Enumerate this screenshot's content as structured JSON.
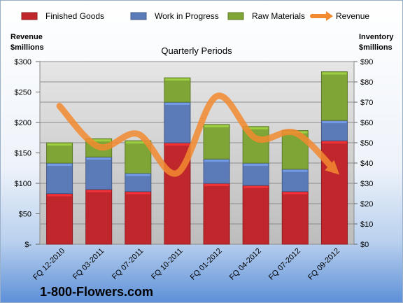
{
  "chart_data": {
    "type": "bar",
    "subtype": "stacked-bar-with-line",
    "title": "Quarterly Periods",
    "left_axis_title_line1": "Revenue",
    "left_axis_title_line2": "$millions",
    "right_axis_title_line1": "Inventory",
    "right_axis_title_line2": "$millions",
    "categories": [
      "FQ 12-2010",
      "FQ 03-2011",
      "FQ 07-2011",
      "FQ 10-2011",
      "FQ 01-2012",
      "FQ 04-2012",
      "FQ 07-2012",
      "FQ 09-2012"
    ],
    "series": [
      {
        "name": "Finished Goods",
        "axis": "right",
        "color": "#c0272d",
        "values": [
          25,
          27,
          26,
          50,
          30,
          29,
          26,
          51
        ]
      },
      {
        "name": "Work in Progress",
        "axis": "right",
        "color": "#5b7bb8",
        "values": [
          15,
          16,
          9,
          20,
          12,
          11,
          11,
          10
        ]
      },
      {
        "name": "Raw Materials",
        "axis": "right",
        "color": "#7ea535",
        "values": [
          10,
          9,
          16,
          12,
          17,
          18,
          19,
          24
        ]
      },
      {
        "name": "Revenue",
        "axis": "left",
        "type": "line",
        "color": "#f28a30",
        "values": [
          227,
          160,
          181,
          117,
          243,
          174,
          183,
          122
        ]
      }
    ],
    "left_ylim": [
      0,
      300
    ],
    "left_ticks": [
      "$-",
      "$50",
      "$100",
      "$150",
      "$200",
      "$250",
      "$300"
    ],
    "right_ylim": [
      0,
      90
    ],
    "right_ticks": [
      "$0",
      "$10",
      "$20",
      "$30",
      "$40",
      "$50",
      "$60",
      "$70",
      "$80",
      "$90"
    ],
    "grid": true,
    "legend_position": "top"
  },
  "brand_text": "1-800-Flowers.com"
}
